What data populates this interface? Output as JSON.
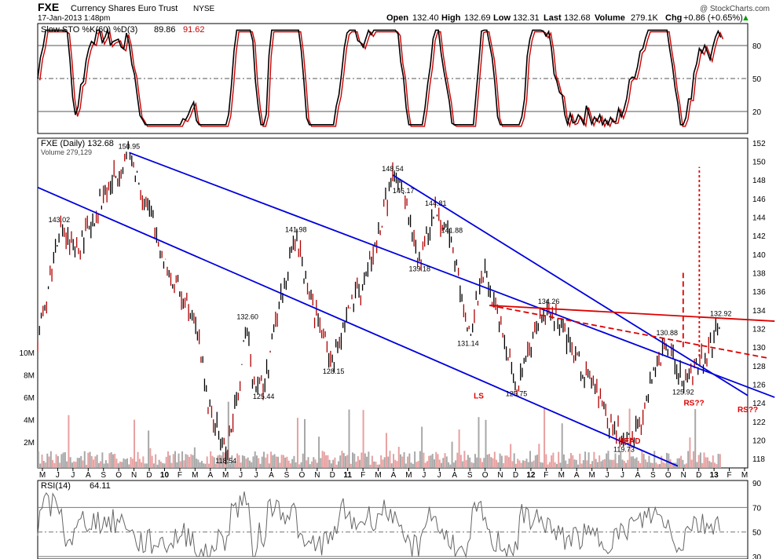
{
  "header": {
    "symbol": "FXE",
    "name": "Currency Shares Euro Trust",
    "exchange": "NYSE",
    "timestamp": "17-Jan-2013 1:48pm",
    "open_label": "Open",
    "open_value": "132.40",
    "high_label": "High",
    "high_value": "132.69",
    "low_label": "Low",
    "low_value": "132.31",
    "last_label": "Last",
    "last_value": "132.68",
    "volume_label": "Volume",
    "volume_value": "279.1K",
    "chg_label": "Chg",
    "chg_value": "+0.86 (+0.65%)",
    "watermark": "@ StockCharts.com"
  },
  "chart_data": [
    {
      "type": "line",
      "panel": "stochastic",
      "title": "Slow STO %K(60) %D(3)",
      "k_value": "89.86",
      "d_value": "91.62",
      "ylim": [
        0,
        100
      ],
      "yticks": [
        20,
        50,
        80
      ],
      "reference_lines": [
        20,
        50,
        80
      ],
      "series": [
        {
          "name": "%K",
          "color": "#000000"
        },
        {
          "name": "%D",
          "color": "#cc0000"
        }
      ]
    },
    {
      "type": "ohlc",
      "panel": "price",
      "legend_price": "FXE (Daily) 132.68",
      "legend_volume": "Volume 279,129",
      "ylim": [
        117,
        152.5
      ],
      "yticks": [
        118,
        120,
        122,
        124,
        126,
        128,
        130,
        132,
        134,
        136,
        138,
        140,
        142,
        144,
        146,
        148,
        150,
        152
      ],
      "volume_ticks": [
        "2M",
        "4M",
        "6M",
        "8M",
        "10M"
      ],
      "x_months": [
        "M",
        "J",
        "J",
        "A",
        "S",
        "O",
        "N",
        "D",
        "10",
        "F",
        "M",
        "A",
        "M",
        "J",
        "J",
        "A",
        "S",
        "O",
        "N",
        "D",
        "11",
        "F",
        "M",
        "A",
        "M",
        "J",
        "J",
        "A",
        "S",
        "O",
        "N",
        "D",
        "12",
        "F",
        "M",
        "A",
        "M",
        "J",
        "J",
        "A",
        "S",
        "O",
        "N",
        "D",
        "13",
        "F",
        "M"
      ],
      "price_path": [
        [
          0,
          130
        ],
        [
          4,
          143.0
        ],
        [
          7,
          140
        ],
        [
          12,
          146
        ],
        [
          17,
          150.95
        ],
        [
          21,
          144
        ],
        [
          25,
          137
        ],
        [
          29,
          134
        ],
        [
          32,
          123
        ],
        [
          35,
          118.54
        ],
        [
          37,
          124
        ],
        [
          39,
          132.6
        ],
        [
          40,
          127
        ],
        [
          42,
          125.44
        ],
        [
          45,
          135
        ],
        [
          48,
          141.98
        ],
        [
          50,
          137
        ],
        [
          52,
          133
        ],
        [
          55,
          128.15
        ],
        [
          57,
          133
        ],
        [
          60,
          136
        ],
        [
          63,
          141
        ],
        [
          66,
          148.54
        ],
        [
          68,
          146.17
        ],
        [
          71,
          139.18
        ],
        [
          74,
          144.81
        ],
        [
          77,
          141.88
        ],
        [
          80,
          131.14
        ],
        [
          83,
          138
        ],
        [
          86,
          133
        ],
        [
          89,
          125.75
        ],
        [
          92,
          131
        ],
        [
          95,
          134.26
        ],
        [
          98,
          131
        ],
        [
          101,
          128
        ],
        [
          104,
          125
        ],
        [
          106,
          122
        ],
        [
          109,
          119.73
        ],
        [
          112,
          122
        ],
        [
          115,
          128
        ],
        [
          117,
          130.88
        ],
        [
          120,
          125.92
        ],
        [
          122,
          128
        ],
        [
          125,
          130
        ],
        [
          127,
          132.92
        ]
      ],
      "price_labels": [
        {
          "x": 17,
          "y": 150.95,
          "text": "150.95"
        },
        {
          "x": 4,
          "y": 143.02,
          "text": "143.02"
        },
        {
          "x": 48,
          "y": 141.98,
          "text": "141.98"
        },
        {
          "x": 39,
          "y": 132.6,
          "text": "132.60"
        },
        {
          "x": 42,
          "y": 125.44,
          "text": "125.44"
        },
        {
          "x": 35,
          "y": 118.54,
          "text": "118.54"
        },
        {
          "x": 55,
          "y": 128.15,
          "text": "128.15"
        },
        {
          "x": 66,
          "y": 148.54,
          "text": "148.54"
        },
        {
          "x": 68,
          "y": 146.17,
          "text": "146.17"
        },
        {
          "x": 74,
          "y": 144.81,
          "text": "144.81"
        },
        {
          "x": 77,
          "y": 141.88,
          "text": "141.88"
        },
        {
          "x": 71,
          "y": 139.18,
          "text": "139.18"
        },
        {
          "x": 80,
          "y": 131.14,
          "text": "131.14"
        },
        {
          "x": 89,
          "y": 125.75,
          "text": "125.75"
        },
        {
          "x": 95,
          "y": 134.26,
          "text": "134.26"
        },
        {
          "x": 109,
          "y": 119.73,
          "text": "119.73"
        },
        {
          "x": 117,
          "y": 130.88,
          "text": "130.88"
        },
        {
          "x": 120,
          "y": 125.92,
          "text": "125.92"
        },
        {
          "x": 127,
          "y": 132.92,
          "text": "132.92"
        }
      ],
      "annotations": [
        {
          "text": "LS",
          "x": 82,
          "y": 124.5
        },
        {
          "text": "HEAD",
          "x": 110,
          "y": 119.6
        },
        {
          "text": "RS??",
          "x": 122,
          "y": 123.7
        },
        {
          "text": "RS??",
          "x": 132,
          "y": 123.0
        }
      ],
      "trendlines": [
        {
          "color": "#0000dd",
          "style": "solid",
          "from": [
            17,
            150.95
          ],
          "to": [
            137,
            124.6
          ]
        },
        {
          "color": "#0000dd",
          "style": "solid",
          "from": [
            66,
            148.54
          ],
          "to": [
            132,
            124.8
          ]
        },
        {
          "color": "#0000dd",
          "style": "solid",
          "from": [
            0,
            147.2
          ],
          "to": [
            119,
            117.2
          ]
        },
        {
          "color": "#dd0000",
          "style": "solid",
          "from": [
            84,
            134.5
          ],
          "to": [
            137,
            132.8
          ]
        },
        {
          "color": "#dd0000",
          "style": "dashed",
          "from": [
            84,
            134.5
          ],
          "to": [
            136,
            128.8
          ]
        },
        {
          "color": "#dd0000",
          "style": "dashed",
          "from": [
            120,
            130
          ],
          "to": [
            120,
            138
          ]
        },
        {
          "color": "#dd0000",
          "style": "dotted",
          "from": [
            123,
            129
          ],
          "to": [
            123,
            149.4
          ]
        }
      ]
    },
    {
      "type": "line",
      "panel": "rsi",
      "title": "RSI(14)",
      "value": "64.11",
      "ylim": [
        28,
        92
      ],
      "yticks": [
        30,
        50,
        70,
        90
      ],
      "reference_lines": [
        30,
        50,
        70
      ]
    }
  ]
}
